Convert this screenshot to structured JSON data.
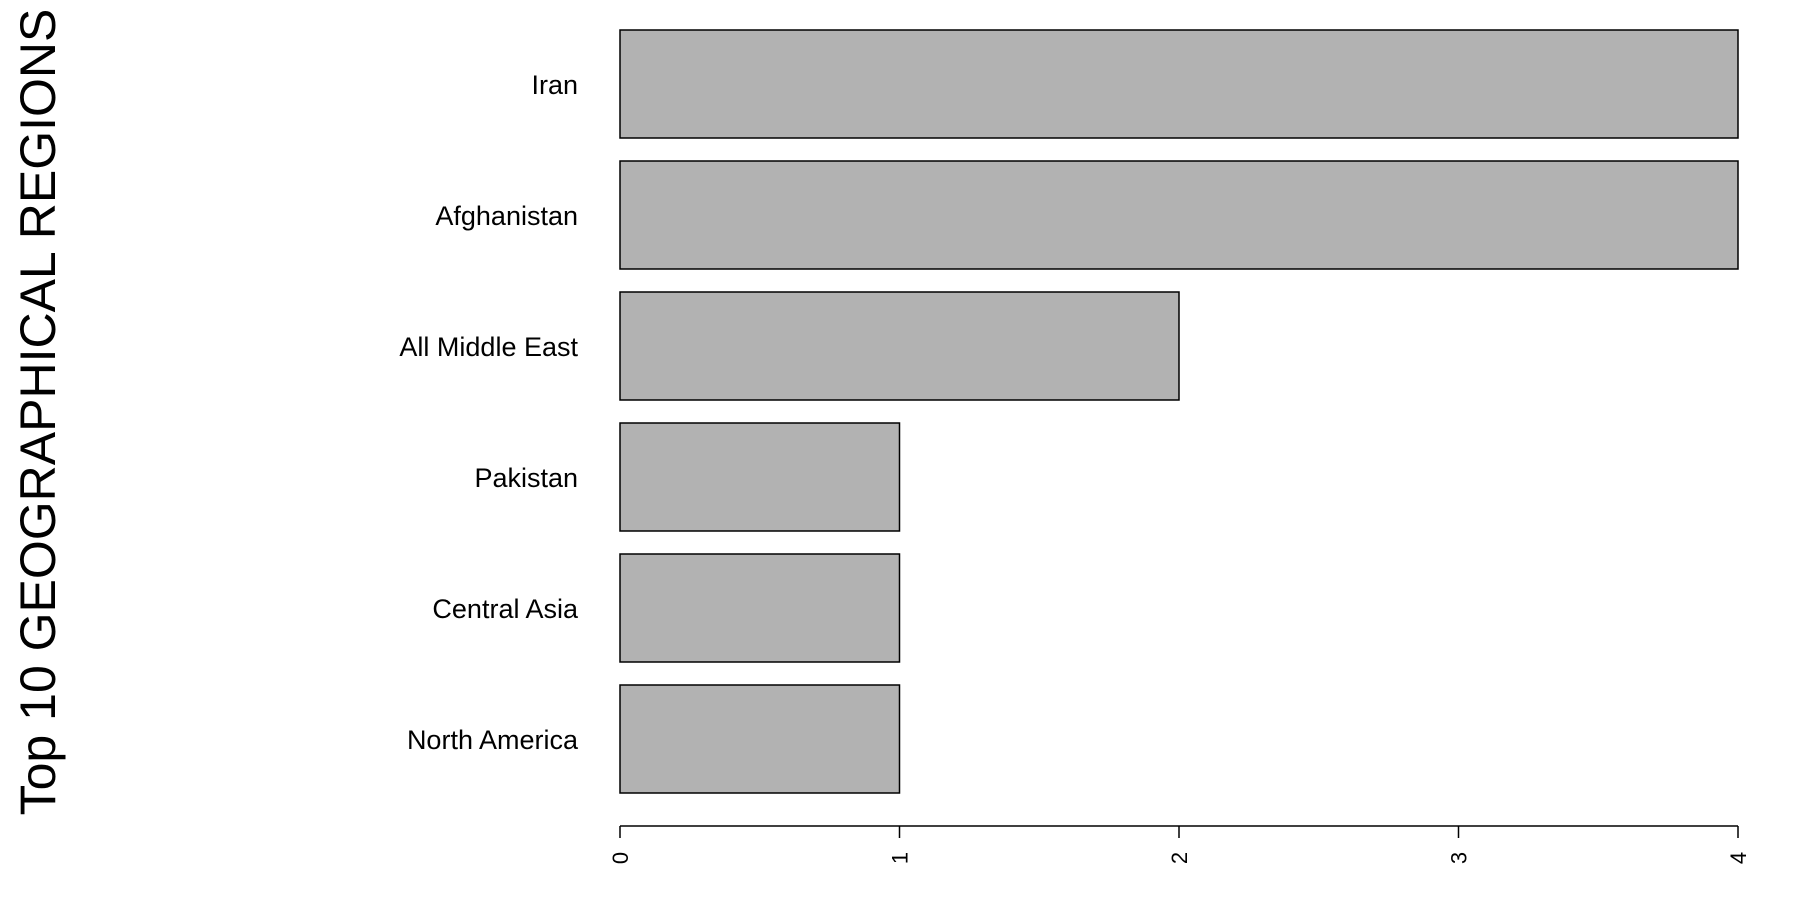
{
  "chart_data": {
    "type": "bar",
    "orientation": "horizontal",
    "title": "",
    "xlabel": "",
    "ylabel": "Top 10 GEOGRAPHICAL REGIONS",
    "categories": [
      "Iran",
      "Afghanistan",
      "All Middle East",
      "Pakistan",
      "Central Asia",
      "North America"
    ],
    "values": [
      4,
      4,
      2,
      1,
      1,
      1
    ],
    "xlim": [
      0,
      4
    ],
    "xticks": [
      0,
      1,
      2,
      3,
      4
    ],
    "tick_label_rotation": "vertical",
    "bar_color": "#b2b2b2",
    "bar_stroke": "#000000",
    "grid": false,
    "legend": "none"
  }
}
